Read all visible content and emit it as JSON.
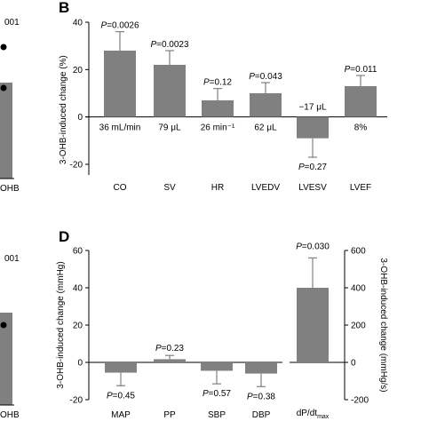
{
  "left_panels": {
    "top": {
      "text_a": "001",
      "text_b": "OHB",
      "bar_value_frac": 0.45
    },
    "bottom": {
      "text_a": "001",
      "text_b": "OHB",
      "bar_value_frac": 0.45
    }
  },
  "chart_data": [
    {
      "panel": "B",
      "type": "bar",
      "ylabel": "3-OHB-induced change (%)",
      "ylim": [
        -20,
        40
      ],
      "yticks": [
        "-20",
        "0",
        "20",
        "40"
      ],
      "categories": [
        "CO",
        "SV",
        "HR",
        "LVEDV",
        "LVESV",
        "LVEF"
      ],
      "values": [
        28,
        22,
        7,
        10,
        -9,
        13
      ],
      "err": [
        8,
        6,
        5,
        4.5,
        8,
        4.5
      ],
      "p_values": [
        "P=0.0026",
        "P=0.0023",
        "P=0.12",
        "P=0.043",
        "P=0.27",
        "P=0.011"
      ],
      "annotations": [
        "36 mL/min",
        "79 μL",
        "26 min⁻¹",
        "62 μL",
        "−17 μL",
        "8%"
      ],
      "bar_color": "#808080",
      "grid": false
    },
    {
      "panel": "D",
      "type": "bar",
      "ylabel": "3-OHB-induced change (mmHg)",
      "ylabel_right": "3-OHB-induced change (mmHg/s)",
      "ylim": [
        -20,
        60
      ],
      "yticks": [
        "-20",
        "0",
        "20",
        "40",
        "60"
      ],
      "ylim_right": [
        -200,
        600
      ],
      "yticks_right": [
        "-200",
        "0",
        "200",
        "400",
        "600"
      ],
      "categories": [
        "MAP",
        "PP",
        "SBP",
        "DBP"
      ],
      "values": [
        -5.5,
        1.7,
        -4.5,
        -6
      ],
      "err": [
        7,
        2,
        7,
        7
      ],
      "p_values": [
        "P=0.45",
        "P=0.23",
        "P=0.57",
        "P=0.38"
      ],
      "right_category": "dP/dt",
      "right_category_sub": "max",
      "right_value": 400,
      "right_err": 160,
      "right_p_value": "P=0.030",
      "bar_color": "#808080",
      "grid": false
    }
  ]
}
